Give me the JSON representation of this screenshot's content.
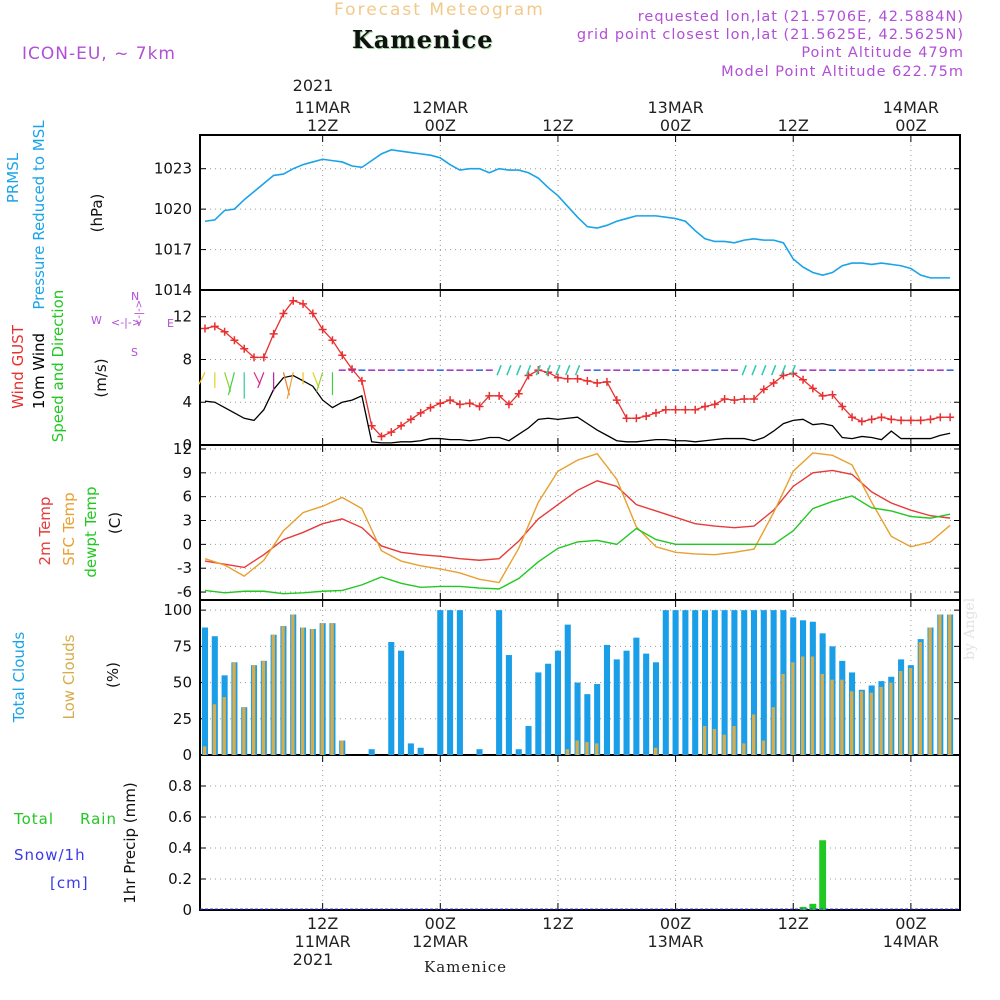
{
  "header": {
    "title_small": "Forecast Meteogram",
    "station": "Kamenice",
    "model": "ICON-EU, ~ 7km",
    "requested": "requested lon,lat (21.5706E, 42.5884N)",
    "gridpoint": "grid point closest lon,lat (21.5625E, 42.5625N)",
    "point_alt": "Point Altitude 479m",
    "model_alt": "Model Point Altitude 622.75m",
    "footer": "Kamenice",
    "credit": "by Angel"
  },
  "time_axis": {
    "top_year": "2021",
    "ticks": [
      {
        "h": 12,
        "top": "11MAR|12Z",
        "bot": "12Z|11MAR|2021"
      },
      {
        "h": 24,
        "top": "12MAR|00Z",
        "bot": "00Z|12MAR"
      },
      {
        "h": 36,
        "top": "12Z",
        "bot": "12Z"
      },
      {
        "h": 48,
        "top": "13MAR|00Z",
        "bot": "00Z|13MAR"
      },
      {
        "h": 60,
        "top": "12Z",
        "bot": "12Z"
      },
      {
        "h": 72,
        "top": "14MAR|00Z",
        "bot": "00Z|14MAR"
      }
    ]
  },
  "labels": {
    "p1_a": "PRMSL",
    "p1_b": "Pressure Reduced to MSL",
    "p1_unit": "(hPa)",
    "p2_a": "Wind GUST",
    "p2_b": "10m Wind",
    "p2_c": "Speed and Direction",
    "p2_unit": "(m/s)",
    "p3_a": "2m Temp",
    "p3_b": "SFC Temp",
    "p3_c": "dewpt Temp",
    "p3_unit": "(C)",
    "p4_a": "Total Clouds",
    "p4_b": "Low Clouds",
    "p4_unit": "(%)",
    "p5_a": "Total",
    "p5_b": "Rain",
    "p5_c": "Snow/1h",
    "p5_d": "[cm]",
    "p5_unit": "1hr Precip (mm)",
    "compass_n": "N",
    "compass_s": "S",
    "compass_w": "W",
    "compass_e": "E"
  },
  "colors": {
    "pressure": "#1aa3e8",
    "gust": "#e83030",
    "wind": "#000000",
    "temp2m": "#e83a3a",
    "sfctemp": "#e8a030",
    "dewpt": "#22c822",
    "total_clouds": "#1a9ee8",
    "low_clouds": "#d6ad4a",
    "rain": "#22c822",
    "snow": "#3a3ae8",
    "label_purple": "#b14fd6"
  },
  "chart_data": [
    {
      "type": "line",
      "title": "PRMSL",
      "ylabel": "(hPa)",
      "ylim": [
        1014,
        1025.5
      ],
      "yticks": [
        1014,
        1017,
        1020,
        1023
      ],
      "x_unit": "hours from 2021-03-11 00Z",
      "x": [
        0,
        1,
        2,
        3,
        4,
        5,
        6,
        7,
        8,
        9,
        10,
        11,
        12,
        13,
        14,
        15,
        16,
        17,
        18,
        19,
        20,
        21,
        22,
        23,
        24,
        25,
        26,
        27,
        28,
        29,
        30,
        31,
        32,
        33,
        34,
        35,
        36,
        37,
        38,
        39,
        40,
        41,
        42,
        43,
        44,
        45,
        46,
        47,
        48,
        49,
        50,
        51,
        52,
        53,
        54,
        55,
        56,
        57,
        58,
        59,
        60,
        61,
        62,
        63,
        64,
        65,
        66,
        67,
        68,
        69,
        70,
        71,
        72,
        73,
        74,
        75,
        76
      ],
      "series": [
        {
          "name": "PRMSL",
          "values": [
            1019.1,
            1019.2,
            1019.9,
            1020.0,
            1020.7,
            1021.3,
            1021.9,
            1022.5,
            1022.6,
            1023.0,
            1023.3,
            1023.5,
            1023.7,
            1023.6,
            1023.5,
            1023.2,
            1023.1,
            1023.6,
            1024.1,
            1024.4,
            1024.3,
            1024.2,
            1024.1,
            1024.0,
            1023.8,
            1023.3,
            1022.9,
            1023.0,
            1023.0,
            1022.7,
            1023.0,
            1022.9,
            1022.9,
            1022.7,
            1022.3,
            1021.6,
            1021.0,
            1020.2,
            1019.4,
            1018.7,
            1018.6,
            1018.8,
            1019.1,
            1019.3,
            1019.5,
            1019.5,
            1019.5,
            1019.4,
            1019.3,
            1019.1,
            1018.4,
            1017.8,
            1017.6,
            1017.6,
            1017.5,
            1017.7,
            1017.8,
            1017.7,
            1017.7,
            1017.5,
            1016.3,
            1015.7,
            1015.3,
            1015.1,
            1015.3,
            1015.8,
            1016.0,
            1016.0,
            1015.9,
            1016.0,
            1015.9,
            1015.8,
            1015.6,
            1015.1,
            1014.9,
            1014.9,
            1014.9
          ]
        }
      ]
    },
    {
      "type": "line",
      "title": "Wind GUST / 10m Wind",
      "ylabel": "(m/s)",
      "ylim": [
        0,
        14.5
      ],
      "yticks": [
        0,
        4,
        8,
        12
      ],
      "x_unit": "hours from 2021-03-11 00Z",
      "x": [
        0,
        1,
        2,
        3,
        4,
        5,
        6,
        7,
        8,
        9,
        10,
        11,
        12,
        13,
        14,
        15,
        16,
        17,
        18,
        19,
        20,
        21,
        22,
        23,
        24,
        25,
        26,
        27,
        28,
        29,
        30,
        31,
        32,
        33,
        34,
        35,
        36,
        37,
        38,
        39,
        40,
        41,
        42,
        43,
        44,
        45,
        46,
        47,
        48,
        49,
        50,
        51,
        52,
        53,
        54,
        55,
        56,
        57,
        58,
        59,
        60,
        61,
        62,
        63,
        64,
        65,
        66,
        67,
        68,
        69,
        70,
        71,
        72,
        73,
        74,
        75,
        76
      ],
      "series": [
        {
          "name": "Wind GUST",
          "values": [
            10.9,
            11.1,
            10.6,
            9.8,
            9.0,
            8.2,
            8.2,
            10.4,
            12.3,
            13.5,
            13.2,
            12.3,
            10.8,
            9.8,
            8.4,
            7.1,
            6.0,
            1.8,
            0.8,
            1.2,
            1.8,
            2.4,
            3.0,
            3.5,
            3.9,
            4.2,
            3.8,
            3.9,
            3.6,
            4.6,
            4.6,
            3.8,
            4.8,
            6.5,
            7.0,
            6.8,
            6.3,
            6.2,
            6.2,
            6.0,
            5.8,
            5.9,
            4.2,
            2.5,
            2.5,
            2.7,
            3.0,
            3.3,
            3.3,
            3.3,
            3.3,
            3.6,
            3.8,
            4.3,
            4.2,
            4.3,
            4.3,
            5.2,
            5.8,
            6.5,
            6.7,
            6.1,
            5.3,
            4.6,
            4.7,
            3.6,
            2.6,
            2.2,
            2.4,
            2.6,
            2.4,
            2.3,
            2.3,
            2.3,
            2.4,
            2.6,
            2.6
          ]
        },
        {
          "name": "10m Wind",
          "values": [
            4.1,
            4.0,
            3.5,
            3.0,
            2.5,
            2.3,
            3.3,
            5.2,
            6.3,
            6.5,
            6.0,
            5.5,
            4.2,
            3.5,
            4.0,
            4.2,
            4.6,
            0.3,
            0.2,
            0.2,
            0.3,
            0.3,
            0.4,
            0.6,
            0.6,
            0.5,
            0.5,
            0.4,
            0.5,
            0.7,
            0.7,
            0.4,
            1.0,
            1.6,
            2.4,
            2.5,
            2.4,
            2.5,
            2.6,
            2.0,
            1.4,
            0.9,
            0.4,
            0.3,
            0.3,
            0.4,
            0.5,
            0.5,
            0.4,
            0.4,
            0.3,
            0.4,
            0.5,
            0.6,
            0.6,
            0.6,
            0.4,
            0.7,
            1.3,
            2.0,
            2.3,
            2.4,
            1.9,
            2.0,
            1.8,
            0.7,
            0.6,
            0.8,
            0.7,
            0.5,
            1.3,
            0.6,
            0.6,
            0.6,
            0.6,
            0.9,
            1.1
          ]
        }
      ]
    },
    {
      "type": "line",
      "title": "2m Temp / SFC Temp / dewpt Temp",
      "ylabel": "(C)",
      "ylim": [
        -7,
        12.5
      ],
      "yticks": [
        -6,
        -3,
        0,
        3,
        6,
        9,
        12
      ],
      "x_unit": "hours from 2021-03-11 00Z",
      "x": [
        0,
        2,
        4,
        6,
        8,
        10,
        12,
        14,
        16,
        18,
        20,
        22,
        24,
        26,
        28,
        30,
        32,
        34,
        36,
        38,
        40,
        42,
        44,
        46,
        48,
        50,
        52,
        54,
        56,
        58,
        60,
        62,
        64,
        66,
        68,
        70,
        72,
        74,
        76
      ],
      "series": [
        {
          "name": "2m Temp",
          "values": [
            -2.1,
            -2.5,
            -2.9,
            -1.3,
            0.6,
            1.5,
            2.6,
            3.2,
            2.1,
            -0.2,
            -1.0,
            -1.3,
            -1.5,
            -1.8,
            -2.0,
            -1.8,
            0.4,
            3.2,
            5.0,
            6.8,
            8.0,
            7.3,
            5.0,
            4.2,
            3.4,
            2.6,
            2.3,
            2.1,
            2.3,
            4.3,
            7.3,
            9.0,
            9.3,
            8.8,
            6.6,
            5.2,
            4.3,
            3.6,
            3.3
          ]
        },
        {
          "name": "SFC Temp",
          "values": [
            -1.8,
            -2.6,
            -4.0,
            -2.0,
            1.7,
            4.0,
            4.8,
            5.9,
            4.5,
            -0.8,
            -2.1,
            -2.7,
            -3.1,
            -3.6,
            -4.4,
            -4.8,
            -0.5,
            5.3,
            9.2,
            10.6,
            11.4,
            8.2,
            2.2,
            -0.3,
            -1.0,
            -1.2,
            -1.3,
            -1.0,
            -0.6,
            4.0,
            9.2,
            11.5,
            11.2,
            10.0,
            5.3,
            1.0,
            -0.3,
            0.3,
            2.4
          ]
        },
        {
          "name": "dewpt Temp",
          "values": [
            -5.8,
            -6.1,
            -5.9,
            -5.9,
            -6.2,
            -6.1,
            -5.9,
            -5.8,
            -5.1,
            -4.1,
            -4.9,
            -5.4,
            -5.3,
            -5.3,
            -5.5,
            -5.6,
            -4.3,
            -2.2,
            -0.5,
            0.3,
            0.5,
            0.0,
            2.0,
            0.6,
            0.0,
            0.0,
            0.0,
            0.0,
            0.0,
            0.0,
            1.7,
            4.5,
            5.4,
            6.1,
            4.6,
            4.2,
            3.5,
            3.3,
            3.8
          ]
        }
      ]
    },
    {
      "type": "bar",
      "title": "Total Clouds / Low Clouds",
      "ylabel": "(%)",
      "ylim": [
        0,
        107
      ],
      "yticks": [
        0,
        25,
        50,
        75,
        100
      ],
      "x_unit": "hours from 2021-03-11 00Z",
      "x": [
        0,
        1,
        2,
        3,
        4,
        5,
        6,
        7,
        8,
        9,
        10,
        11,
        12,
        13,
        14,
        15,
        16,
        17,
        18,
        19,
        20,
        21,
        22,
        23,
        24,
        25,
        26,
        27,
        28,
        29,
        30,
        31,
        32,
        33,
        34,
        35,
        36,
        37,
        38,
        39,
        40,
        41,
        42,
        43,
        44,
        45,
        46,
        47,
        48,
        49,
        50,
        51,
        52,
        53,
        54,
        55,
        56,
        57,
        58,
        59,
        60,
        61,
        62,
        63,
        64,
        65,
        66,
        67,
        68,
        69,
        70,
        71,
        72,
        73,
        74,
        75,
        76
      ],
      "series": [
        {
          "name": "Total Clouds",
          "values": [
            88,
            82,
            55,
            64,
            33,
            62,
            65,
            83,
            89,
            97,
            88,
            87,
            91,
            91,
            10,
            0,
            0,
            4,
            0,
            78,
            72,
            8,
            5,
            0,
            100,
            100,
            100,
            0,
            4,
            0,
            100,
            69,
            4,
            20,
            57,
            63,
            72,
            90,
            50,
            42,
            49,
            76,
            66,
            72,
            81,
            70,
            64,
            100,
            100,
            100,
            100,
            100,
            100,
            100,
            100,
            100,
            100,
            100,
            100,
            100,
            95,
            93,
            92,
            84,
            75,
            65,
            57,
            45,
            48,
            51,
            54,
            66,
            62,
            80,
            88,
            97,
            97
          ]
        },
        {
          "name": "Low Clouds",
          "values": [
            6,
            35,
            40,
            64,
            33,
            62,
            65,
            83,
            89,
            97,
            88,
            87,
            91,
            91,
            10,
            0,
            0,
            0,
            0,
            0,
            0,
            0,
            0,
            0,
            0,
            0,
            0,
            0,
            0,
            0,
            0,
            0,
            0,
            0,
            0,
            0,
            0,
            4,
            10,
            9,
            8,
            0,
            0,
            0,
            0,
            0,
            5,
            0,
            0,
            0,
            0,
            20,
            18,
            14,
            20,
            8,
            28,
            10,
            33,
            56,
            64,
            68,
            68,
            56,
            52,
            52,
            44,
            44,
            43,
            47,
            50,
            58,
            60,
            78,
            88,
            97,
            97
          ]
        }
      ]
    },
    {
      "type": "bar",
      "title": "1hr Precip",
      "ylabel": "1hr Precip (mm)",
      "ylim": [
        0,
        1.0
      ],
      "yticks": [
        0,
        0.2,
        0.4,
        0.6,
        0.8
      ],
      "x_unit": "hours from 2021-03-11 00Z",
      "x": [
        61,
        62,
        63
      ],
      "series": [
        {
          "name": "Total Rain",
          "values": [
            0.02,
            0.04,
            0.45
          ]
        }
      ]
    }
  ]
}
